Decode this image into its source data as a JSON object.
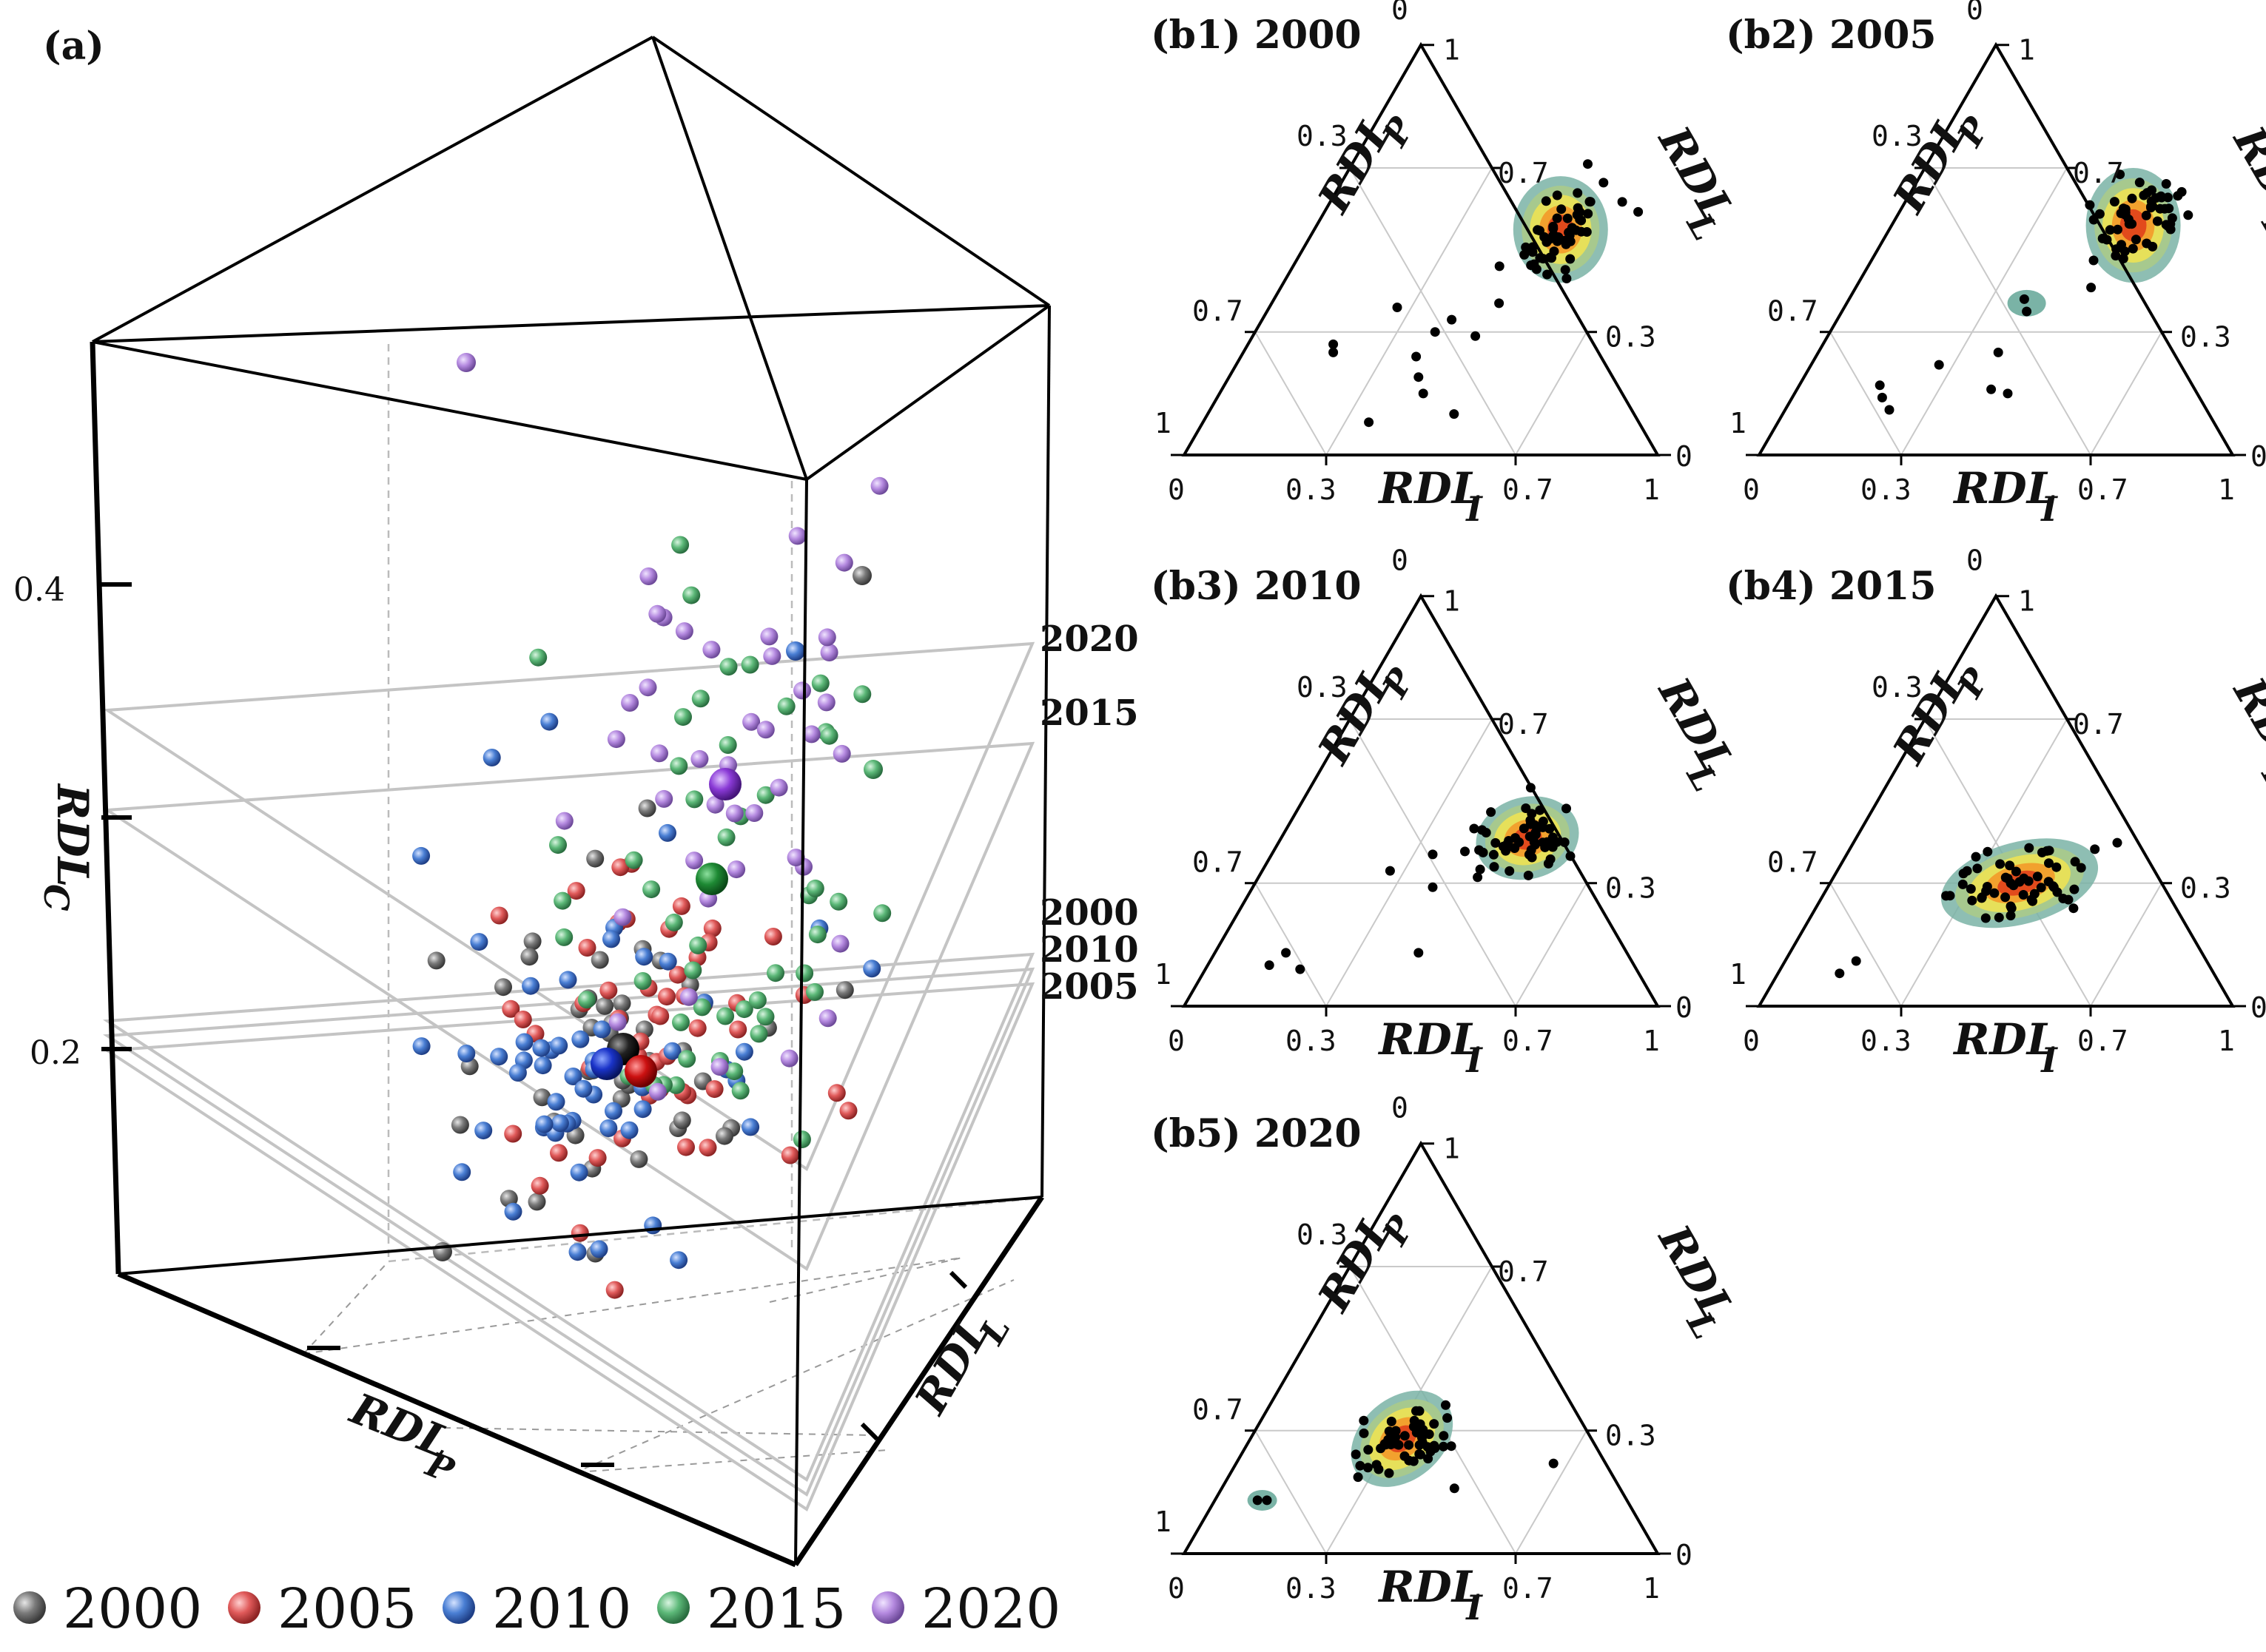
{
  "chart_data": [
    {
      "id": "a",
      "type": "scatter",
      "title": "(a)",
      "zlabel": "RDL",
      "zlabel_sub": "C",
      "xlabel": "RDL",
      "xlabel_sub": "P",
      "ylabel": "RDL",
      "ylabel_sub": "L",
      "z_ticks": [
        "0.4",
        "0.2"
      ],
      "plane_labels": [
        "2020",
        "2015",
        "2000",
        "2010",
        "2005"
      ],
      "legend": [
        "2000",
        "2005",
        "2010",
        "2015",
        "2020"
      ],
      "colors": {
        "2000": "#7a7a7a",
        "2005": "#e05a5a",
        "2010": "#4a7fd4",
        "2015": "#5cb878",
        "2020": "#b58ae0"
      }
    },
    {
      "id": "b1",
      "type": "scatter",
      "title": "(b1) 2000",
      "axes": {
        "left": "RDL",
        "left_sub": "P",
        "right": "RDL",
        "right_sub": "L",
        "bottom": "RDL",
        "bottom_sub": "I"
      },
      "ticks": {
        "bottom": [
          "0",
          "0.3",
          "0.7",
          "1"
        ],
        "left": [
          "1",
          "0.7",
          "0.3",
          "0"
        ],
        "right": [
          "1",
          "0.7",
          "0.3",
          "0"
        ]
      }
    },
    {
      "id": "b2",
      "type": "scatter",
      "title": "(b2) 2005",
      "axes": {
        "left": "RDL",
        "left_sub": "P",
        "right": "RDL",
        "right_sub": "L",
        "bottom": "RDL",
        "bottom_sub": "I"
      },
      "ticks": {
        "bottom": [
          "0",
          "0.3",
          "0.7",
          "1"
        ],
        "left": [
          "1",
          "0.7",
          "0.3",
          "0"
        ],
        "right": [
          "1",
          "0.7",
          "0.3",
          "0"
        ]
      }
    },
    {
      "id": "b3",
      "type": "scatter",
      "title": "(b3) 2010",
      "axes": {
        "left": "RDL",
        "left_sub": "P",
        "right": "RDL",
        "right_sub": "L",
        "bottom": "RDL",
        "bottom_sub": "I"
      },
      "ticks": {
        "bottom": [
          "0",
          "0.3",
          "0.7",
          "1"
        ],
        "left": [
          "1",
          "0.7",
          "0.3",
          "0"
        ],
        "right": [
          "1",
          "0.7",
          "0.3",
          "0"
        ]
      }
    },
    {
      "id": "b4",
      "type": "scatter",
      "title": "(b4) 2015",
      "axes": {
        "left": "RDL",
        "left_sub": "P",
        "right": "RDL",
        "right_sub": "L",
        "bottom": "RDL",
        "bottom_sub": "I"
      },
      "ticks": {
        "bottom": [
          "0",
          "0.3",
          "0.7",
          "1"
        ],
        "left": [
          "1",
          "0.7",
          "0.3",
          "0"
        ],
        "right": [
          "1",
          "0.7",
          "0.3",
          "0"
        ]
      }
    },
    {
      "id": "b5",
      "type": "scatter",
      "title": "(b5) 2020",
      "axes": {
        "left": "RDL",
        "left_sub": "P",
        "right": "RDL",
        "right_sub": "L",
        "bottom": "RDL",
        "bottom_sub": "I"
      },
      "ticks": {
        "bottom": [
          "0",
          "0.3",
          "0.7",
          "1"
        ],
        "left": [
          "1",
          "0.7",
          "0.3",
          "0"
        ],
        "right": [
          "1",
          "0.7",
          "0.3",
          "0"
        ]
      }
    }
  ]
}
